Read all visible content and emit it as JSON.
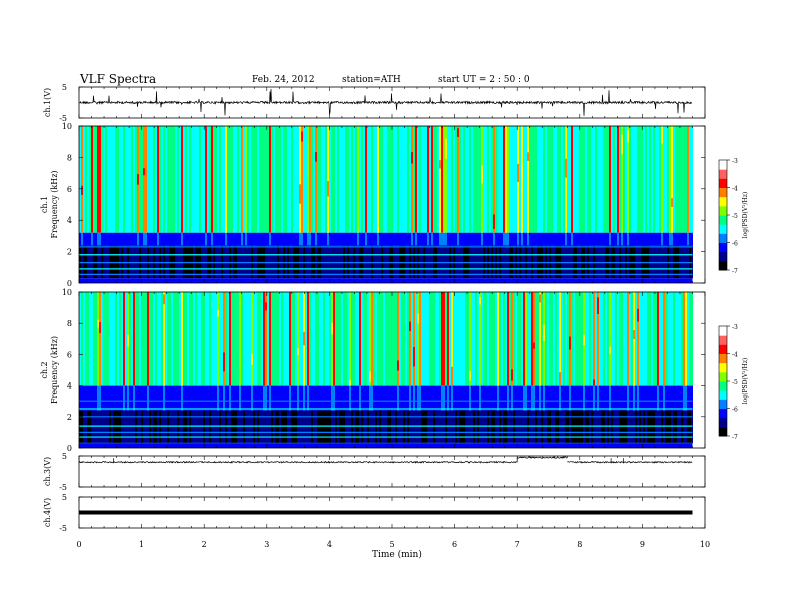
{
  "header": {
    "title": "VLF  Spectra",
    "date": "Feb. 24, 2012",
    "station": "station=ATH",
    "start": "start  UT  =   2  : 50 : 0"
  },
  "chart_data": [
    {
      "type": "line",
      "panel": "ch1-waveform",
      "ylabel": "ch.1(V)",
      "ylim": [
        -5,
        5
      ],
      "yticks": [
        "5",
        "-5"
      ],
      "baseline": 0,
      "description_values": "noisy waveform near 0 V with spikes",
      "color": "#000000"
    },
    {
      "type": "heatmap",
      "panel": "ch1-spectrogram",
      "ylabel": [
        "ch.1",
        "Frequency  (kHz)"
      ],
      "ylim": [
        0,
        10
      ],
      "yticks": [
        "0",
        "2",
        "4",
        "6",
        "8",
        "10"
      ],
      "colorbar": {
        "label": "log(PSD(V²/Hz)",
        "range": [
          -7,
          -3
        ],
        "ticks": [
          "-3",
          "-4",
          "-5",
          "-6",
          "-7"
        ]
      }
    },
    {
      "type": "heatmap",
      "panel": "ch2-spectrogram",
      "ylabel": [
        "ch.2",
        "Frequency  (kHz)"
      ],
      "ylim": [
        0,
        10
      ],
      "yticks": [
        "0",
        "2",
        "4",
        "6",
        "8",
        "10"
      ],
      "colorbar": {
        "label": "log(PSD(V²/Hz)",
        "range": [
          -7,
          -3
        ],
        "ticks": [
          "-3",
          "-4",
          "-5",
          "-6",
          "-7"
        ]
      }
    },
    {
      "type": "line",
      "panel": "ch3-waveform",
      "ylabel": "ch.3(V)",
      "ylim": [
        -5,
        5
      ],
      "yticks": [
        "5",
        "-5"
      ],
      "segments": [
        {
          "x": [
            0,
            7.0
          ],
          "y": [
            3,
            3
          ]
        },
        {
          "x": [
            7.0,
            7.8
          ],
          "y": [
            4.5,
            4.5
          ]
        },
        {
          "x": [
            7.8,
            9.8
          ],
          "y": [
            3,
            3
          ]
        }
      ],
      "color": "#000000"
    },
    {
      "type": "line",
      "panel": "ch4-waveform",
      "ylabel": "ch.4(V)",
      "ylim": [
        -5,
        5
      ],
      "yticks": [
        "5",
        "-5"
      ],
      "baseline": 0,
      "color": "#000000"
    }
  ],
  "xaxis": {
    "label": "Time  (min)",
    "xlim": [
      0,
      10
    ],
    "ticks": [
      "0",
      "1",
      "2",
      "3",
      "4",
      "5",
      "6",
      "7",
      "8",
      "9",
      "10"
    ],
    "data_end": 9.8
  },
  "colors": {
    "colormap": [
      "#000000",
      "#00008b",
      "#0000ff",
      "#0080ff",
      "#00ffff",
      "#00ff80",
      "#80ff00",
      "#ffff00",
      "#ff8000",
      "#ff0000",
      "#ff6060",
      "#ffffff"
    ]
  }
}
